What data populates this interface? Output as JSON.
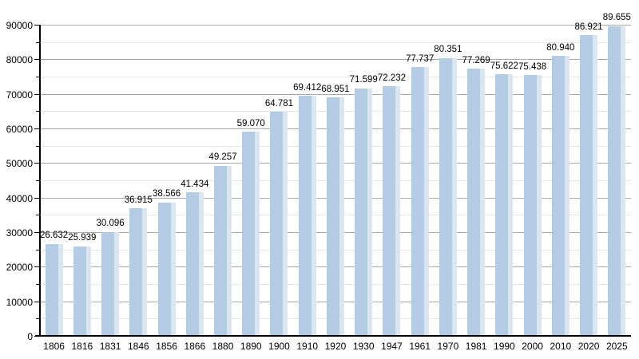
{
  "chart_data": {
    "type": "bar",
    "title": "",
    "xlabel": "",
    "ylabel": "",
    "categories": [
      "1806",
      "1816",
      "1831",
      "1846",
      "1856",
      "1866",
      "1880",
      "1890",
      "1900",
      "1910",
      "1920",
      "1930",
      "1947",
      "1961",
      "1970",
      "1981",
      "1990",
      "2000",
      "2010",
      "2020",
      "2025"
    ],
    "values": [
      26632,
      25939,
      30096,
      36915,
      38566,
      41434,
      49257,
      59070,
      64781,
      69412,
      68951,
      71599,
      72232,
      77737,
      80351,
      77269,
      75622,
      75438,
      80940,
      86921,
      89655
    ],
    "value_labels": [
      "26.632",
      "25.939",
      "30.096",
      "36.915",
      "38.566",
      "41.434",
      "49.257",
      "59.070",
      "64.781",
      "69.412",
      "68.951",
      "71.599",
      "72.232",
      "77.737",
      "80.351",
      "77.269",
      "75.622",
      "75.438",
      "80.940",
      "86.921",
      "89.655"
    ],
    "ylim": [
      0,
      90000
    ],
    "y_major_step": 10000,
    "y_minor_step": 5000,
    "y_tick_labels": [
      "0",
      "10000",
      "20000",
      "30000",
      "40000",
      "50000",
      "60000",
      "70000",
      "80000",
      "90000"
    ],
    "grid": true,
    "legend_position": "none",
    "colors": {
      "bar_fill": "#b3cce4",
      "bar_highlight": "#d9e5f1",
      "grid_major": "#a9a9a9",
      "grid_minor": "#e6e6e6",
      "axis": "#000000",
      "text": "#000000",
      "background": "#ffffff"
    }
  }
}
